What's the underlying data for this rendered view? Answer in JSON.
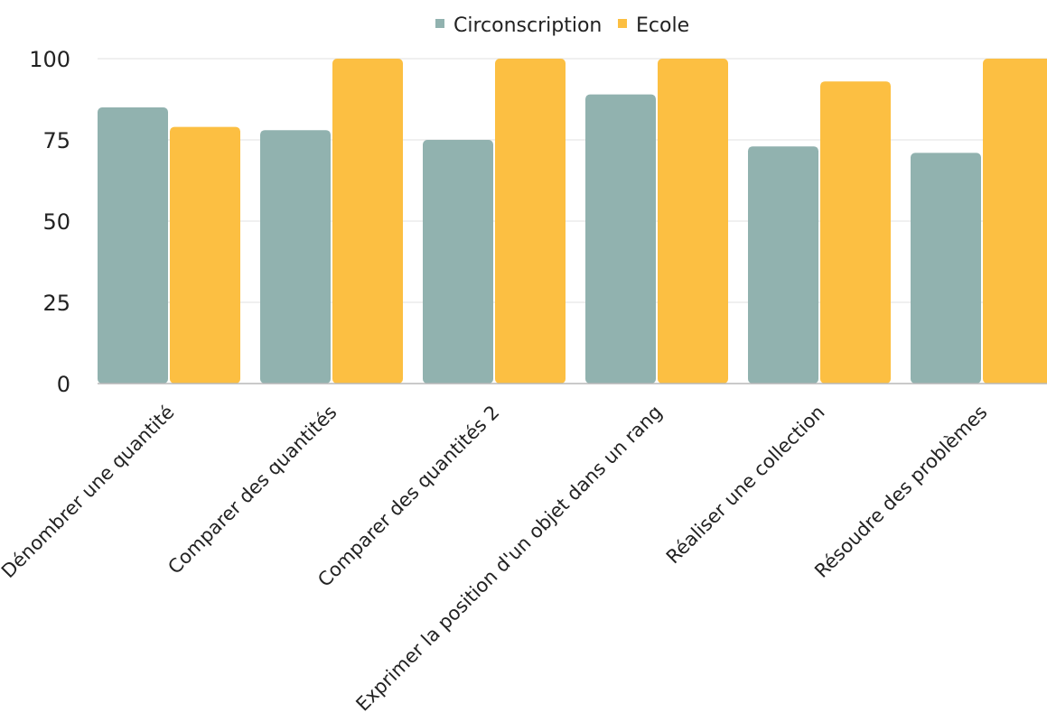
{
  "chart_data": {
    "type": "bar",
    "categories": [
      "Dénombrer une quantité",
      "Comparer des quantités",
      "Comparer des quantités 2",
      "Exprimer la position d'un objet dans un rang",
      "Réaliser une collection",
      "Résoudre des problèmes"
    ],
    "series": [
      {
        "name": "Circonscription",
        "color": "#91b2af",
        "values": [
          85,
          78,
          75,
          89,
          73,
          71
        ]
      },
      {
        "name": "Ecole",
        "color": "#fcbf42",
        "values": [
          79,
          100,
          100,
          100,
          93,
          100
        ]
      }
    ],
    "ylim": [
      0,
      100
    ],
    "yticks": [
      0,
      25,
      50,
      75,
      100
    ],
    "grid": true,
    "legend_position": "top-center"
  }
}
